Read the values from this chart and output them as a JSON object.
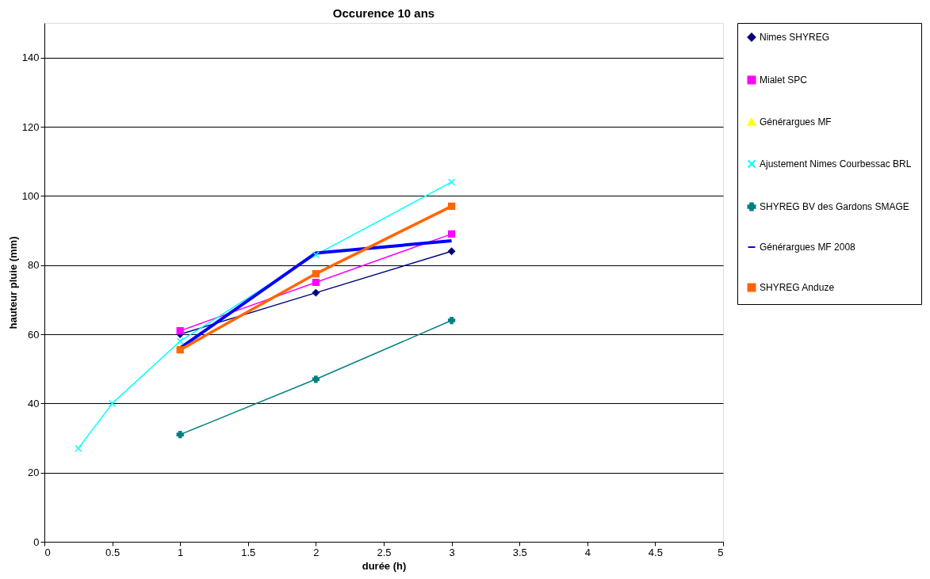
{
  "chart_data": {
    "type": "line",
    "title": "Occurence 10 ans",
    "xlabel": "durée (h)",
    "ylabel": "hauteur pluie (mm)",
    "xlim": [
      0,
      5
    ],
    "xticks": [
      0,
      0.5,
      1,
      1.5,
      2,
      2.5,
      3,
      3.5,
      4,
      4.5,
      5
    ],
    "ylim": [
      0,
      150
    ],
    "yticks": [
      0,
      20,
      40,
      60,
      80,
      100,
      120,
      140
    ],
    "grid": "y",
    "legend": "right",
    "series": [
      {
        "name": "Nimes SHYREG",
        "color": "#000080",
        "marker": "diamond",
        "x": [
          1,
          2,
          3
        ],
        "values": [
          60,
          72,
          84
        ]
      },
      {
        "name": "Mialet SPC",
        "color": "#ff00ff",
        "marker": "square",
        "x": [
          1,
          2,
          3
        ],
        "values": [
          61,
          75,
          89
        ]
      },
      {
        "name": "Générargues MF",
        "color": "#ffff00",
        "marker": "triangle"
      },
      {
        "name": "Ajustement Nimes Courbessac BRL",
        "color": "#00ffff",
        "marker": "cross",
        "x": [
          0.25,
          0.5,
          1,
          2,
          3
        ],
        "values": [
          27,
          40,
          58,
          83,
          104
        ]
      },
      {
        "name": "SHYREG BV des Gardons SMAGE",
        "color": "#008080",
        "marker": "plus",
        "x": [
          1,
          2,
          3
        ],
        "values": [
          31,
          47,
          64
        ]
      },
      {
        "name": "Générargues MF 2008",
        "color": "#0000ff",
        "marker": "none",
        "x": [
          1,
          2,
          3
        ],
        "values": [
          56,
          83.5,
          87
        ]
      },
      {
        "name": "SHYREG Anduze",
        "color": "#ff6600",
        "marker": "square",
        "x": [
          1,
          2,
          3
        ],
        "values": [
          55.5,
          77.5,
          97
        ]
      }
    ]
  }
}
